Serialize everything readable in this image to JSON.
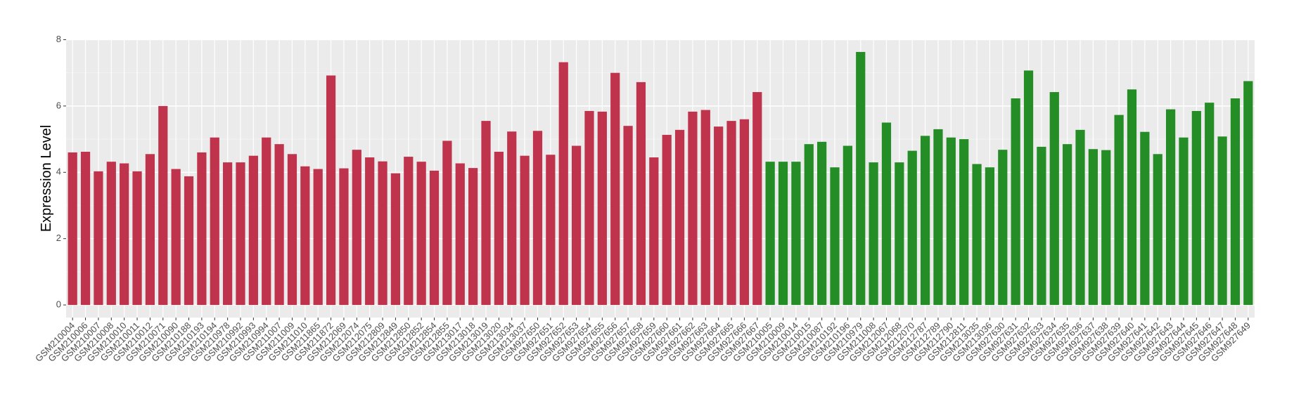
{
  "chart_data": {
    "type": "bar",
    "y_label": "Expression Level",
    "categories": [
      "GSM210004",
      "GSM210006",
      "GSM210007",
      "GSM210008",
      "GSM210010",
      "GSM210011",
      "GSM210012",
      "GSM210071",
      "GSM210090",
      "GSM210188",
      "GSM210193",
      "GSM210194",
      "GSM210978",
      "GSM210992",
      "GSM210993",
      "GSM210994",
      "GSM211007",
      "GSM211009",
      "GSM211010",
      "GSM211865",
      "GSM211872",
      "GSM212069",
      "GSM212074",
      "GSM212075",
      "GSM212809",
      "GSM212849",
      "GSM212850",
      "GSM212852",
      "GSM212854",
      "GSM212855",
      "GSM213017",
      "GSM213018",
      "GSM213019",
      "GSM213020",
      "GSM213034",
      "GSM213037",
      "GSM927650",
      "GSM927651",
      "GSM927652",
      "GSM927653",
      "GSM927654",
      "GSM927655",
      "GSM927656",
      "GSM927657",
      "GSM927658",
      "GSM927659",
      "GSM927660",
      "GSM927661",
      "GSM927662",
      "GSM927663",
      "GSM927664",
      "GSM927665",
      "GSM927666",
      "GSM927667",
      "GSM210005",
      "GSM210009",
      "GSM210014",
      "GSM210015",
      "GSM210087",
      "GSM210192",
      "GSM210196",
      "GSM210979",
      "GSM211008",
      "GSM212067",
      "GSM212068",
      "GSM212070",
      "GSM212787",
      "GSM212789",
      "GSM212790",
      "GSM212811",
      "GSM213035",
      "GSM213036",
      "GSM927630",
      "GSM927631",
      "GSM927632",
      "GSM927633",
      "GSM927634",
      "GSM927635",
      "GSM927636",
      "GSM927637",
      "GSM927638",
      "GSM927639",
      "GSM927640",
      "GSM927641",
      "GSM927642",
      "GSM927643",
      "GSM927644",
      "GSM927645",
      "GSM927646",
      "GSM927647",
      "GSM927648",
      "GSM927649"
    ],
    "values": [
      4.6,
      4.62,
      4.03,
      4.32,
      4.27,
      4.03,
      4.55,
      6.0,
      4.1,
      3.88,
      4.6,
      5.05,
      4.3,
      4.3,
      4.5,
      5.05,
      4.85,
      4.55,
      4.18,
      4.1,
      6.92,
      4.12,
      4.68,
      4.45,
      4.33,
      3.97,
      4.47,
      4.32,
      4.05,
      4.95,
      4.27,
      4.13,
      5.55,
      4.62,
      5.23,
      4.5,
      5.25,
      4.53,
      7.32,
      4.8,
      5.85,
      5.83,
      7.0,
      5.4,
      6.72,
      4.45,
      5.13,
      5.28,
      5.83,
      5.88,
      5.38,
      5.55,
      5.6,
      6.42,
      4.32,
      4.32,
      4.32,
      4.85,
      4.92,
      4.15,
      4.8,
      7.63,
      4.3,
      5.5,
      4.3,
      4.65,
      5.1,
      5.3,
      5.05,
      5.0,
      4.25,
      4.15,
      4.68,
      6.23,
      7.07,
      4.77,
      6.42,
      4.85,
      5.28,
      4.7,
      4.67,
      5.73,
      6.5,
      5.22,
      4.55,
      5.9,
      5.05,
      5.85,
      6.1,
      5.08,
      6.23,
      6.75
    ],
    "bar_colors": [
      "#c0334d",
      "#c0334d",
      "#c0334d",
      "#c0334d",
      "#c0334d",
      "#c0334d",
      "#c0334d",
      "#c0334d",
      "#c0334d",
      "#c0334d",
      "#c0334d",
      "#c0334d",
      "#c0334d",
      "#c0334d",
      "#c0334d",
      "#c0334d",
      "#c0334d",
      "#c0334d",
      "#c0334d",
      "#c0334d",
      "#c0334d",
      "#c0334d",
      "#c0334d",
      "#c0334d",
      "#c0334d",
      "#c0334d",
      "#c0334d",
      "#c0334d",
      "#c0334d",
      "#c0334d",
      "#c0334d",
      "#c0334d",
      "#c0334d",
      "#c0334d",
      "#c0334d",
      "#c0334d",
      "#c0334d",
      "#c0334d",
      "#c0334d",
      "#c0334d",
      "#c0334d",
      "#c0334d",
      "#c0334d",
      "#c0334d",
      "#c0334d",
      "#c0334d",
      "#c0334d",
      "#c0334d",
      "#c0334d",
      "#c0334d",
      "#c0334d",
      "#c0334d",
      "#c0334d",
      "#c0334d",
      "#258d25",
      "#258d25",
      "#258d25",
      "#258d25",
      "#258d25",
      "#258d25",
      "#258d25",
      "#258d25",
      "#258d25",
      "#258d25",
      "#258d25",
      "#258d25",
      "#258d25",
      "#258d25",
      "#258d25",
      "#258d25",
      "#258d25",
      "#258d25",
      "#258d25",
      "#258d25",
      "#258d25",
      "#258d25",
      "#258d25",
      "#258d25",
      "#258d25",
      "#258d25",
      "#258d25",
      "#258d25",
      "#258d25",
      "#258d25",
      "#258d25",
      "#258d25",
      "#258d25",
      "#258d25",
      "#258d25",
      "#258d25",
      "#258d25",
      "#258d25"
    ],
    "ylim": [
      -0.38,
      8.01
    ],
    "yticks": [
      0,
      2,
      4,
      6,
      8
    ],
    "grid": true
  }
}
